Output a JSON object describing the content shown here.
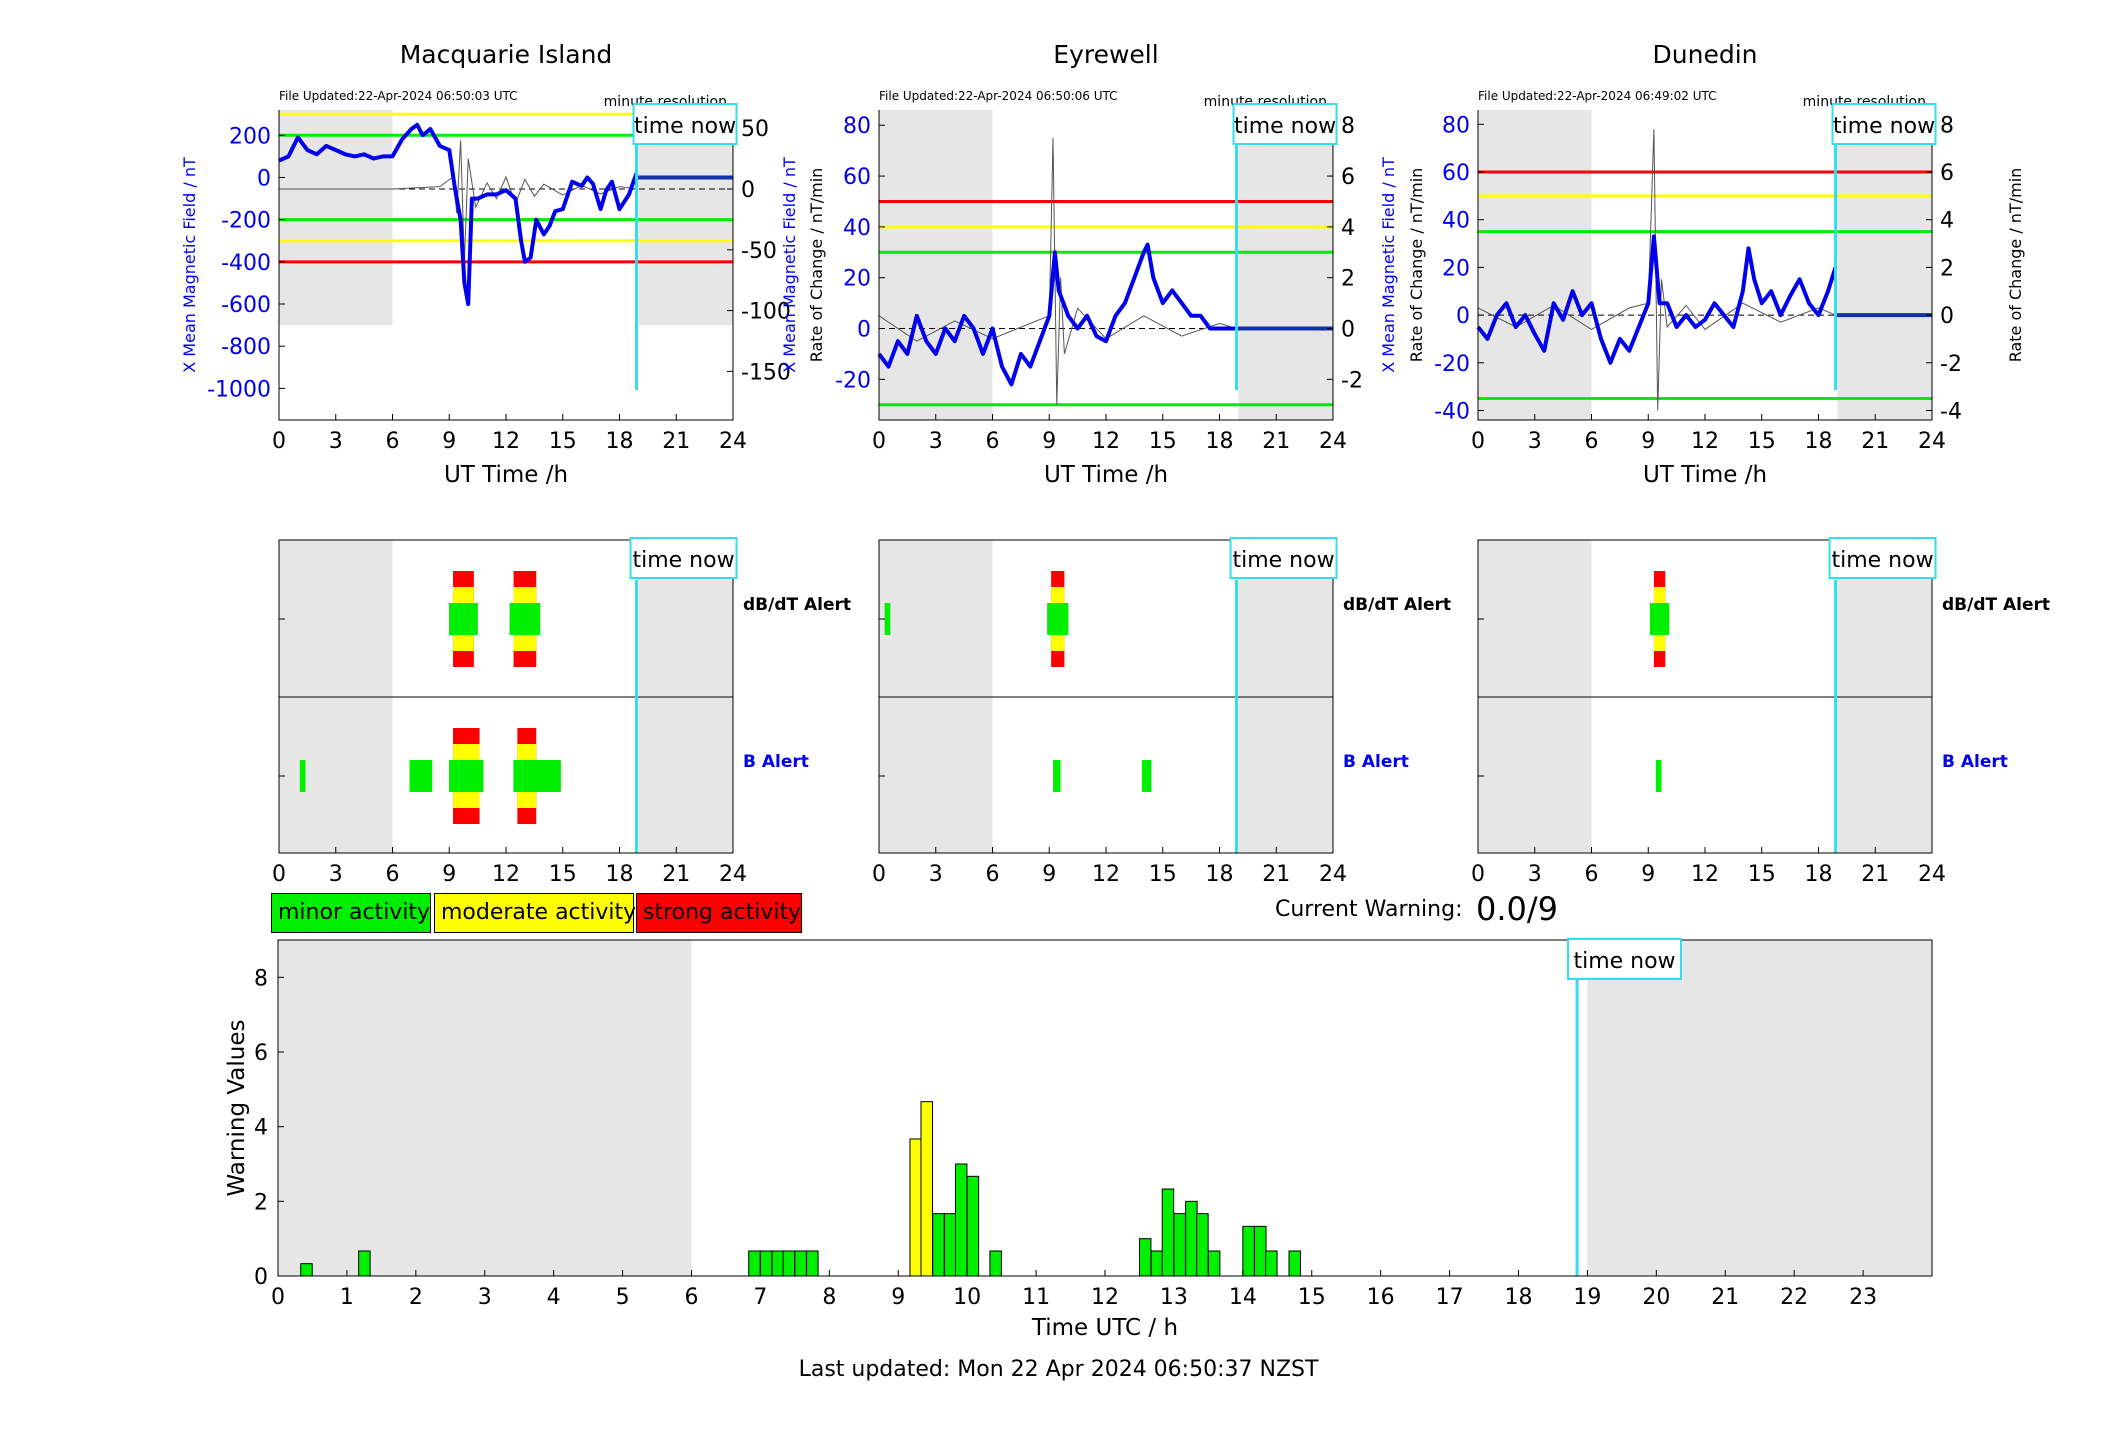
{
  "colors": {
    "minor": "#00ee00",
    "moderate": "#ffff00",
    "strong": "#ff0000",
    "field": "#0000ee",
    "nowline": "#33ddee",
    "shade": "#e6e6e6"
  },
  "legend": {
    "minor": "minor activity",
    "moderate": "moderate activity",
    "strong": "strong activity"
  },
  "current_warning": {
    "label": "Current Warning:",
    "value": "0.0/9"
  },
  "last_updated": "Last updated: Mon 22 Apr 2024 06:50:37 NZST",
  "chart_data": [
    {
      "type": "line",
      "title": "Macquarie Island",
      "file_updated": "File Updated:22-Apr-2024 06:50:03 UTC",
      "resolution": "minute resolution",
      "xlabel": "UT Time /h",
      "ylabel": "X Mean Magnetic Field / nT",
      "ylabel_right": "Rate of Change / nT/min",
      "xlim": [
        0,
        24
      ],
      "xticks": [
        0,
        3,
        6,
        9,
        12,
        15,
        18,
        21,
        24
      ],
      "ylim": [
        -1150,
        320
      ],
      "yticks": [
        200,
        0,
        -200,
        -400,
        -600,
        -800,
        -1000
      ],
      "ylim_right": [
        -190,
        65
      ],
      "yticks_right": [
        50,
        0,
        -50,
        -100,
        -150
      ],
      "shade_ranges": [
        [
          0,
          6,
          -700
        ],
        [
          19,
          24,
          -700
        ]
      ],
      "time_now": 18.9,
      "time_now_label": "time now",
      "thresholds": [
        {
          "level": "strong",
          "value": -400
        },
        {
          "level": "moderate",
          "value": 300
        },
        {
          "level": "moderate",
          "value": -300
        },
        {
          "level": "minor",
          "value": 200
        },
        {
          "level": "minor",
          "value": -200
        }
      ],
      "field_x": [
        0,
        0.5,
        1,
        1.5,
        2,
        2.5,
        3,
        3.5,
        4,
        4.5,
        5,
        5.5,
        6,
        6.5,
        7,
        7.3,
        7.6,
        8,
        8.5,
        9,
        9.3,
        9.6,
        9.8,
        10,
        10.2,
        10.5,
        11,
        11.5,
        12,
        12.5,
        12.8,
        13,
        13.3,
        13.6,
        14,
        14.3,
        14.6,
        15,
        15.5,
        16,
        16.3,
        16.6,
        17,
        17.3,
        17.6,
        18,
        18.5,
        18.9
      ],
      "field_y": [
        80,
        100,
        190,
        130,
        110,
        150,
        130,
        110,
        100,
        110,
        90,
        100,
        100,
        180,
        230,
        250,
        200,
        230,
        150,
        130,
        -50,
        -200,
        -500,
        -600,
        -100,
        -100,
        -80,
        -80,
        -60,
        -100,
        -300,
        -400,
        -380,
        -200,
        -270,
        -230,
        -160,
        -150,
        -20,
        -40,
        0,
        -30,
        -150,
        -60,
        -20,
        -150,
        -80,
        20
      ],
      "rate_x": [
        0,
        6,
        8.5,
        9.2,
        9.4,
        9.6,
        9.8,
        10,
        10.4,
        11,
        11.5,
        12,
        12.5,
        13,
        13.5,
        14,
        15,
        16,
        17,
        18,
        18.9
      ],
      "rate_y": [
        0,
        0,
        2,
        10,
        -20,
        40,
        -60,
        25,
        -15,
        5,
        -8,
        10,
        -12,
        8,
        -6,
        4,
        -5,
        3,
        -4,
        2,
        0
      ]
    },
    {
      "type": "line",
      "title": "Eyrewell",
      "file_updated": "File Updated:22-Apr-2024 06:50:06 UTC",
      "resolution": "minute resolution",
      "xlabel": "UT Time /h",
      "ylabel": "X Mean Magnetic Field / nT",
      "ylabel_right": "Rate of Change / nT/min",
      "xlim": [
        0,
        24
      ],
      "xticks": [
        0,
        3,
        6,
        9,
        12,
        15,
        18,
        21,
        24
      ],
      "ylim": [
        -36,
        86
      ],
      "yticks": [
        80,
        60,
        40,
        20,
        0,
        -20
      ],
      "ylim_right": [
        -3.6,
        8.6
      ],
      "yticks_right": [
        8,
        6,
        4,
        2,
        0,
        -2
      ],
      "shade_ranges": [
        [
          0,
          6,
          -36
        ],
        [
          19,
          24,
          -36
        ]
      ],
      "time_now": 18.9,
      "time_now_label": "time now",
      "thresholds": [
        {
          "level": "strong",
          "value": 50
        },
        {
          "level": "moderate",
          "value": 40
        },
        {
          "level": "minor",
          "value": 30
        },
        {
          "level": "minor",
          "value": -30
        }
      ],
      "field_x": [
        0,
        0.5,
        1,
        1.5,
        2,
        2.5,
        3,
        3.5,
        4,
        4.5,
        5,
        5.5,
        6,
        6.5,
        7,
        7.5,
        8,
        8.5,
        9,
        9.3,
        9.5,
        10,
        10.5,
        11,
        11.5,
        12,
        12.5,
        13,
        13.5,
        14,
        14.2,
        14.5,
        15,
        15.5,
        16,
        16.5,
        17,
        17.5,
        18,
        18.9
      ],
      "field_y": [
        -10,
        -15,
        -5,
        -10,
        5,
        -5,
        -10,
        0,
        -5,
        5,
        0,
        -10,
        0,
        -15,
        -22,
        -10,
        -15,
        -5,
        5,
        30,
        15,
        5,
        0,
        5,
        -3,
        -5,
        5,
        10,
        20,
        30,
        33,
        20,
        10,
        15,
        10,
        5,
        5,
        0,
        0,
        0
      ],
      "rate_x": [
        0,
        2,
        4,
        6,
        8,
        9,
        9.2,
        9.4,
        9.6,
        9.8,
        10.5,
        12,
        14,
        16,
        18,
        18.9
      ],
      "rate_y": [
        0.5,
        -0.5,
        0.3,
        -0.4,
        0.2,
        0.5,
        7.5,
        -3,
        2,
        -1,
        0.8,
        -0.4,
        0.5,
        -0.3,
        0.2,
        0
      ]
    },
    {
      "type": "line",
      "title": "Dunedin",
      "file_updated": "File Updated:22-Apr-2024 06:49:02 UTC",
      "resolution": "minute resolution",
      "xlabel": "UT Time /h",
      "ylabel": "X Mean Magnetic Field / nT",
      "ylabel_right": "Rate of Change / nT/min",
      "xlim": [
        0,
        24
      ],
      "xticks": [
        0,
        3,
        6,
        9,
        12,
        15,
        18,
        21,
        24
      ],
      "ylim": [
        -44,
        86
      ],
      "yticks": [
        80,
        60,
        40,
        20,
        0,
        -20,
        -40
      ],
      "ylim_right": [
        -4.4,
        8.6
      ],
      "yticks_right": [
        8,
        6,
        4,
        2,
        0,
        -2,
        -4
      ],
      "shade_ranges": [
        [
          0,
          6,
          -44
        ],
        [
          19,
          24,
          -44
        ]
      ],
      "time_now": 18.9,
      "time_now_label": "time now",
      "thresholds": [
        {
          "level": "strong",
          "value": 60
        },
        {
          "level": "moderate",
          "value": 50
        },
        {
          "level": "minor",
          "value": 35
        },
        {
          "level": "minor",
          "value": -35
        }
      ],
      "field_x": [
        0,
        0.5,
        1,
        1.5,
        2,
        2.5,
        3,
        3.5,
        4,
        4.5,
        5,
        5.5,
        6,
        6.5,
        7,
        7.5,
        8,
        8.5,
        9,
        9.3,
        9.6,
        10,
        10.5,
        11,
        11.5,
        12,
        12.5,
        13,
        13.5,
        14,
        14.3,
        14.6,
        15,
        15.5,
        16,
        16.5,
        17,
        17.5,
        18,
        18.5,
        18.9
      ],
      "field_y": [
        -5,
        -10,
        0,
        5,
        -5,
        0,
        -8,
        -15,
        5,
        -2,
        10,
        0,
        5,
        -10,
        -20,
        -10,
        -15,
        -5,
        5,
        33,
        5,
        5,
        -5,
        0,
        -5,
        -2,
        5,
        0,
        -5,
        10,
        28,
        15,
        5,
        10,
        0,
        8,
        15,
        5,
        0,
        10,
        20
      ],
      "rate_x": [
        0,
        2,
        4,
        6,
        8,
        9,
        9.3,
        9.5,
        9.7,
        10,
        11,
        12,
        14,
        16,
        18,
        18.9
      ],
      "rate_y": [
        0.3,
        -0.5,
        0.4,
        -0.6,
        0.3,
        0.5,
        7.8,
        -4,
        1.5,
        -0.5,
        0.4,
        -0.6,
        0.5,
        -0.3,
        0.3,
        0
      ]
    },
    {
      "type": "alert_timeline",
      "station": "Macquarie Island",
      "xlim": [
        0,
        24
      ],
      "xticks": [
        0,
        3,
        6,
        9,
        12,
        15,
        18,
        21,
        24
      ],
      "time_now": 18.9,
      "time_now_label": "time now",
      "shade_ranges": [
        [
          0,
          6
        ],
        [
          19,
          24
        ]
      ],
      "rows": [
        {
          "label": "dB/dT Alert",
          "label_color": "#000000",
          "events": [
            {
              "x0": 9.2,
              "x1": 10.3,
              "level": 3
            },
            {
              "x0": 12.4,
              "x1": 13.6,
              "level": 3
            }
          ]
        },
        {
          "label": "B Alert",
          "label_color": "#0000ee",
          "events": [
            {
              "x0": 1.1,
              "x1": 1.4,
              "level": 1
            },
            {
              "x0": 6.9,
              "x1": 8.1,
              "level": 1
            },
            {
              "x0": 9.2,
              "x1": 10.6,
              "level": 3
            },
            {
              "x0": 12.6,
              "x1": 13.6,
              "level": 3
            },
            {
              "x0": 13.8,
              "x1": 14.9,
              "level": 1
            }
          ]
        }
      ]
    },
    {
      "type": "alert_timeline",
      "station": "Eyrewell",
      "xlim": [
        0,
        24
      ],
      "xticks": [
        0,
        3,
        6,
        9,
        12,
        15,
        18,
        21,
        24
      ],
      "time_now": 18.9,
      "time_now_label": "time now",
      "shade_ranges": [
        [
          0,
          6
        ],
        [
          19,
          24
        ]
      ],
      "rows": [
        {
          "label": "dB/dT Alert",
          "label_color": "#000000",
          "events": [
            {
              "x0": 0.3,
              "x1": 0.6,
              "level": 1
            },
            {
              "x0": 9.1,
              "x1": 9.8,
              "level": 3
            }
          ]
        },
        {
          "label": "B Alert",
          "label_color": "#0000ee",
          "events": [
            {
              "x0": 9.2,
              "x1": 9.6,
              "level": 1
            },
            {
              "x0": 13.9,
              "x1": 14.4,
              "level": 1
            }
          ]
        }
      ]
    },
    {
      "type": "alert_timeline",
      "station": "Dunedin",
      "xlim": [
        0,
        24
      ],
      "xticks": [
        0,
        3,
        6,
        9,
        12,
        15,
        18,
        21,
        24
      ],
      "time_now": 18.9,
      "time_now_label": "time now",
      "shade_ranges": [
        [
          0,
          6
        ],
        [
          19,
          24
        ]
      ],
      "rows": [
        {
          "label": "dB/dT Alert",
          "label_color": "#000000",
          "events": [
            {
              "x0": 9.3,
              "x1": 9.9,
              "level": 3
            }
          ]
        },
        {
          "label": "B Alert",
          "label_color": "#0000ee",
          "events": [
            {
              "x0": 9.4,
              "x1": 9.7,
              "level": 1
            }
          ]
        }
      ]
    },
    {
      "type": "bar",
      "xlabel": "Time UTC / h",
      "ylabel": "Warning Values",
      "xlim": [
        0,
        24
      ],
      "xticks": [
        0,
        1,
        2,
        3,
        4,
        5,
        6,
        7,
        8,
        9,
        10,
        11,
        12,
        13,
        14,
        15,
        16,
        17,
        18,
        19,
        20,
        21,
        22,
        23
      ],
      "ylim": [
        0,
        9
      ],
      "yticks": [
        0,
        2,
        4,
        6,
        8
      ],
      "time_now": 18.85,
      "time_now_label": "time now",
      "shade_ranges": [
        [
          0,
          6
        ],
        [
          19,
          24
        ]
      ],
      "bar_width": 0.1667,
      "bars": [
        {
          "x": 0.33,
          "value": 0.33,
          "level": "minor"
        },
        {
          "x": 1.17,
          "value": 0.67,
          "level": "minor"
        },
        {
          "x": 6.83,
          "value": 0.67,
          "level": "minor"
        },
        {
          "x": 7.0,
          "value": 0.67,
          "level": "minor"
        },
        {
          "x": 7.17,
          "value": 0.67,
          "level": "minor"
        },
        {
          "x": 7.33,
          "value": 0.67,
          "level": "minor"
        },
        {
          "x": 7.5,
          "value": 0.67,
          "level": "minor"
        },
        {
          "x": 7.67,
          "value": 0.67,
          "level": "minor"
        },
        {
          "x": 9.17,
          "value": 3.67,
          "level": "moderate"
        },
        {
          "x": 9.33,
          "value": 4.67,
          "level": "moderate"
        },
        {
          "x": 9.5,
          "value": 1.67,
          "level": "minor"
        },
        {
          "x": 9.67,
          "value": 1.67,
          "level": "minor"
        },
        {
          "x": 9.83,
          "value": 3.0,
          "level": "minor"
        },
        {
          "x": 10.0,
          "value": 2.67,
          "level": "minor"
        },
        {
          "x": 10.33,
          "value": 0.67,
          "level": "minor"
        },
        {
          "x": 12.5,
          "value": 1.0,
          "level": "minor"
        },
        {
          "x": 12.67,
          "value": 0.67,
          "level": "minor"
        },
        {
          "x": 12.83,
          "value": 2.33,
          "level": "minor"
        },
        {
          "x": 13.0,
          "value": 1.67,
          "level": "minor"
        },
        {
          "x": 13.17,
          "value": 2.0,
          "level": "minor"
        },
        {
          "x": 13.33,
          "value": 1.67,
          "level": "minor"
        },
        {
          "x": 13.5,
          "value": 0.67,
          "level": "minor"
        },
        {
          "x": 14.0,
          "value": 1.33,
          "level": "minor"
        },
        {
          "x": 14.17,
          "value": 1.33,
          "level": "minor"
        },
        {
          "x": 14.33,
          "value": 0.67,
          "level": "minor"
        },
        {
          "x": 14.67,
          "value": 0.67,
          "level": "minor"
        }
      ]
    }
  ]
}
